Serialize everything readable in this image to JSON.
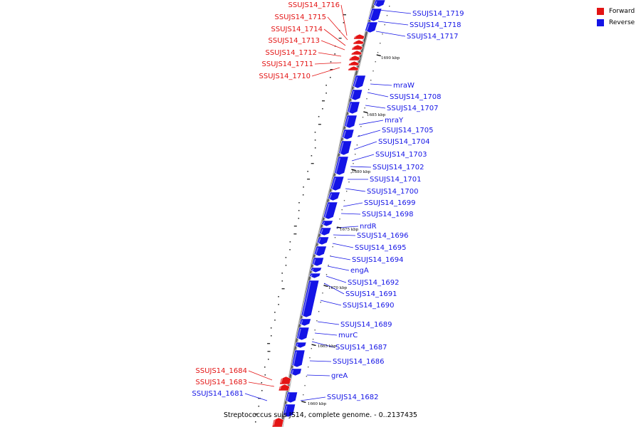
{
  "colors": {
    "forward": "#e31414",
    "reverse": "#1414e6",
    "backbone": "#808080"
  },
  "legend": [
    {
      "label": "Forward",
      "strand": "forward"
    },
    {
      "label": "Reverse",
      "strand": "reverse"
    }
  ],
  "caption": "Streptococcus suis JS14, complete genome. - 0..2137435",
  "ticks": [
    "1690 kbp",
    "1685 kbp",
    "1680 kbp",
    "1675 kbp",
    "1670 kbp",
    "1665 kbp",
    "1660 kbp"
  ],
  "genes": [
    {
      "label": "SSUJS14_1719",
      "strand": "reverse"
    },
    {
      "label": "SSUJS14_1718",
      "strand": "reverse"
    },
    {
      "label": "SSUJS14_1717",
      "strand": "reverse"
    },
    {
      "label": "SSUJS14_1716",
      "strand": "forward"
    },
    {
      "label": "SSUJS14_1715",
      "strand": "forward"
    },
    {
      "label": "SSUJS14_1714",
      "strand": "forward"
    },
    {
      "label": "SSUJS14_1713",
      "strand": "forward"
    },
    {
      "label": "SSUJS14_1712",
      "strand": "forward"
    },
    {
      "label": "SSUJS14_1711",
      "strand": "forward"
    },
    {
      "label": "SSUJS14_1710",
      "strand": "forward"
    },
    {
      "label": "mraW",
      "strand": "reverse"
    },
    {
      "label": "SSUJS14_1708",
      "strand": "reverse"
    },
    {
      "label": "SSUJS14_1707",
      "strand": "reverse"
    },
    {
      "label": "mraY",
      "strand": "reverse"
    },
    {
      "label": "SSUJS14_1705",
      "strand": "reverse"
    },
    {
      "label": "SSUJS14_1704",
      "strand": "reverse"
    },
    {
      "label": "SSUJS14_1703",
      "strand": "reverse"
    },
    {
      "label": "SSUJS14_1702",
      "strand": "reverse"
    },
    {
      "label": "SSUJS14_1701",
      "strand": "reverse"
    },
    {
      "label": "SSUJS14_1700",
      "strand": "reverse"
    },
    {
      "label": "SSUJS14_1699",
      "strand": "reverse"
    },
    {
      "label": "SSUJS14_1698",
      "strand": "reverse"
    },
    {
      "label": "nrdR",
      "strand": "reverse"
    },
    {
      "label": "SSUJS14_1696",
      "strand": "reverse"
    },
    {
      "label": "SSUJS14_1695",
      "strand": "reverse"
    },
    {
      "label": "SSUJS14_1694",
      "strand": "reverse"
    },
    {
      "label": "engA",
      "strand": "reverse"
    },
    {
      "label": "SSUJS14_1692",
      "strand": "reverse"
    },
    {
      "label": "SSUJS14_1691",
      "strand": "reverse"
    },
    {
      "label": "SSUJS14_1690",
      "strand": "reverse"
    },
    {
      "label": "SSUJS14_1689",
      "strand": "reverse"
    },
    {
      "label": "murC",
      "strand": "reverse"
    },
    {
      "label": "SSUJS14_1687",
      "strand": "reverse"
    },
    {
      "label": "SSUJS14_1686",
      "strand": "reverse"
    },
    {
      "label": "greA",
      "strand": "reverse"
    },
    {
      "label": "SSUJS14_1684",
      "strand": "forward"
    },
    {
      "label": "SSUJS14_1683",
      "strand": "forward"
    },
    {
      "label": "SSUJS14_1681",
      "strand": "reverse"
    },
    {
      "label": "SSUJS14_1682",
      "strand": "reverse"
    }
  ]
}
